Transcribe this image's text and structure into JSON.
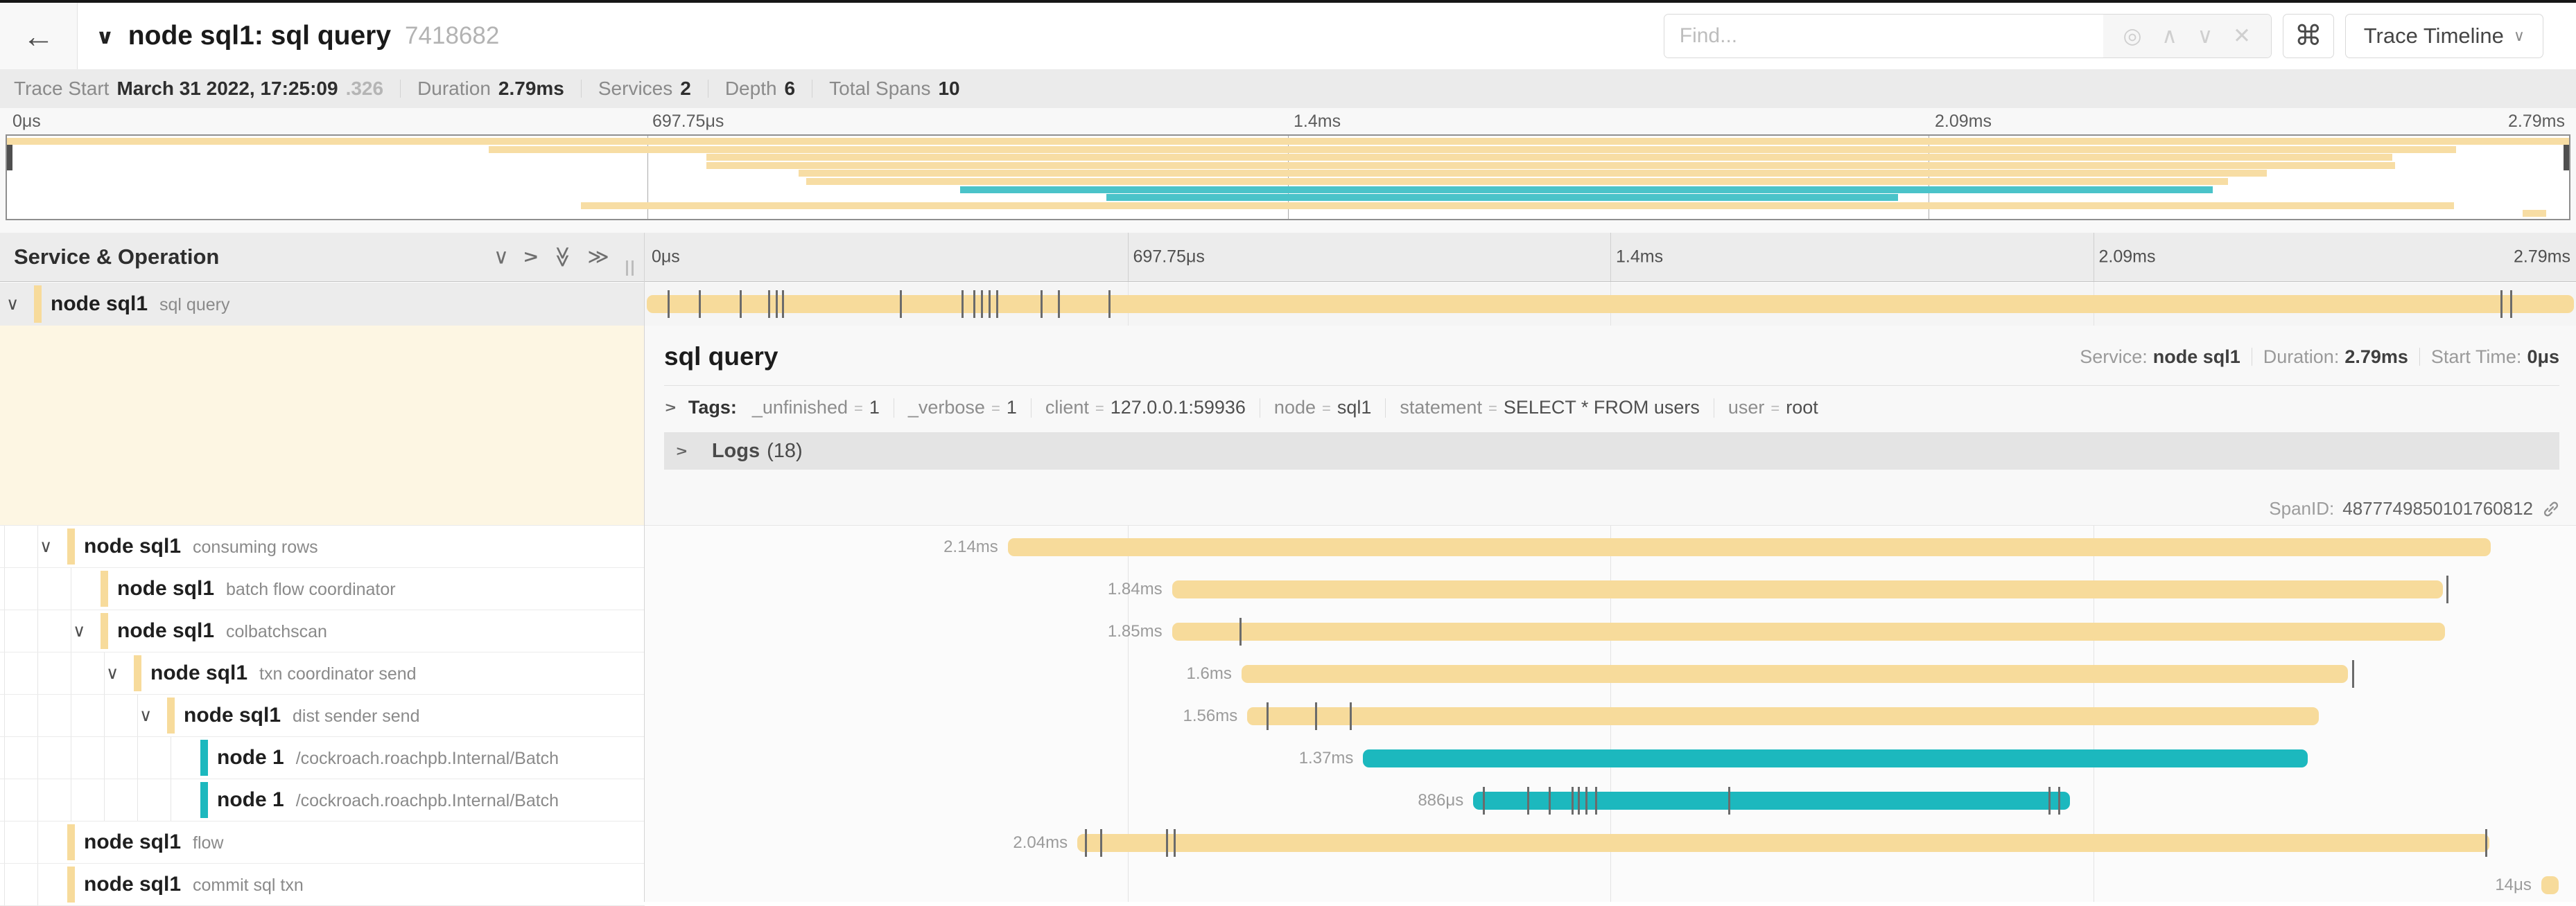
{
  "header": {
    "title": "node sql1: sql query",
    "trace_id": "7418682",
    "find_placeholder": "Find...",
    "view_button": "Trace Timeline"
  },
  "icons": {
    "back": "←",
    "title_chevron": "∨",
    "locate": "◎",
    "prev": "∧",
    "next": "∨",
    "clear": "✕",
    "shortcut": "⌘",
    "view_chevron": "∨",
    "collapse_one": "∨",
    "expand_one": "∨",
    "collapse_all": "≫",
    "expand_all": "≫",
    "row_chevron": "∨",
    "section_chevron": "∨"
  },
  "stats": {
    "items": [
      {
        "label": "Trace Start",
        "value": "March 31 2022, 17:25:09",
        "muted": ".326"
      },
      {
        "label": "Duration",
        "value": "2.79ms",
        "muted": ""
      },
      {
        "label": "Services",
        "value": "2",
        "muted": ""
      },
      {
        "label": "Depth",
        "value": "6",
        "muted": ""
      },
      {
        "label": "Total Spans",
        "value": "10",
        "muted": ""
      }
    ]
  },
  "ruler": {
    "labels": [
      "0μs",
      "697.75μs",
      "1.4ms",
      "2.09ms",
      "2.79ms"
    ],
    "positions": [
      0,
      25,
      50,
      75,
      100
    ]
  },
  "timeline_header": {
    "title": "Service & Operation"
  },
  "detail": {
    "title": "sql query",
    "meta": [
      {
        "label": "Service:",
        "value": "node sql1"
      },
      {
        "label": "Duration:",
        "value": "2.79ms"
      },
      {
        "label": "Start Time:",
        "value": "0μs"
      }
    ],
    "tags_label": "Tags:",
    "tags": [
      {
        "key": "_unfinished",
        "value": "1"
      },
      {
        "key": "_verbose",
        "value": "1"
      },
      {
        "key": "client",
        "value": "127.0.0.1:59936"
      },
      {
        "key": "node",
        "value": "sql1"
      },
      {
        "key": "statement",
        "value": "SELECT * FROM users"
      },
      {
        "key": "user",
        "value": "root"
      }
    ],
    "logs_label": "Logs",
    "logs_count": "(18)",
    "span_id_label": "SpanID:",
    "span_id": "4877749850101760812"
  },
  "spans": [
    {
      "service": "node sql1",
      "operation": "sql query",
      "depth": 0,
      "has_children": true,
      "selected": true,
      "color": "yellow",
      "start": 0.1,
      "end": 99.9,
      "duration": "",
      "ticks": [
        1.2,
        2.8,
        4.9,
        6.4,
        6.8,
        7.1,
        13.2,
        16.4,
        17.0,
        17.4,
        17.8,
        18.2,
        20.5,
        21.4,
        24.0,
        96.1,
        96.6
      ]
    },
    {
      "service": "node sql1",
      "operation": "consuming rows",
      "depth": 1,
      "has_children": true,
      "selected": false,
      "color": "yellow",
      "start": 18.8,
      "end": 95.6,
      "duration": "2.14ms",
      "ticks": []
    },
    {
      "service": "node sql1",
      "operation": "batch flow coordinator",
      "depth": 2,
      "has_children": false,
      "selected": false,
      "color": "yellow",
      "start": 27.3,
      "end": 93.1,
      "duration": "1.84ms",
      "ticks": [
        93.3
      ]
    },
    {
      "service": "node sql1",
      "operation": "colbatchscan",
      "depth": 2,
      "has_children": true,
      "selected": false,
      "color": "yellow",
      "start": 27.3,
      "end": 93.2,
      "duration": "1.85ms",
      "ticks": [
        30.8
      ]
    },
    {
      "service": "node sql1",
      "operation": "txn coordinator send",
      "depth": 3,
      "has_children": true,
      "selected": false,
      "color": "yellow",
      "start": 30.9,
      "end": 88.2,
      "duration": "1.6ms",
      "ticks": [
        88.4
      ]
    },
    {
      "service": "node sql1",
      "operation": "dist sender send",
      "depth": 4,
      "has_children": true,
      "selected": false,
      "color": "yellow",
      "start": 31.2,
      "end": 86.7,
      "duration": "1.56ms",
      "ticks": [
        32.2,
        34.7,
        36.5
      ]
    },
    {
      "service": "node 1",
      "operation": "/cockroach.roachpb.Internal/Batch",
      "depth": 5,
      "has_children": false,
      "selected": false,
      "color": "teal",
      "start": 37.2,
      "end": 86.1,
      "duration": "1.37ms",
      "ticks": []
    },
    {
      "service": "node 1",
      "operation": "/cockroach.roachpb.Internal/Batch",
      "depth": 5,
      "has_children": false,
      "selected": false,
      "color": "teal",
      "start": 42.9,
      "end": 73.8,
      "duration": "886μs",
      "ticks": [
        43.4,
        45.7,
        46.8,
        48.0,
        48.3,
        48.7,
        49.2,
        56.1,
        72.7,
        73.2
      ]
    },
    {
      "service": "node sql1",
      "operation": "flow",
      "depth": 1,
      "has_children": false,
      "selected": false,
      "color": "yellow",
      "start": 22.4,
      "end": 95.5,
      "duration": "2.04ms",
      "ticks": [
        22.8,
        23.6,
        27.0,
        27.4,
        95.3
      ]
    },
    {
      "service": "node sql1",
      "operation": "commit sql txn",
      "depth": 1,
      "has_children": false,
      "selected": false,
      "color": "yellow",
      "start": 98.2,
      "end": 99.1,
      "duration": "14μs",
      "ticks": []
    }
  ],
  "colors": {
    "yellow": "#f7db9b",
    "teal": "#1cb8be",
    "mini_yellow": "#f7dda4",
    "mini_teal": "#4ac3c9",
    "selected_row_bg": "#ececec",
    "detail_left_bg": "#fdf6e3"
  }
}
